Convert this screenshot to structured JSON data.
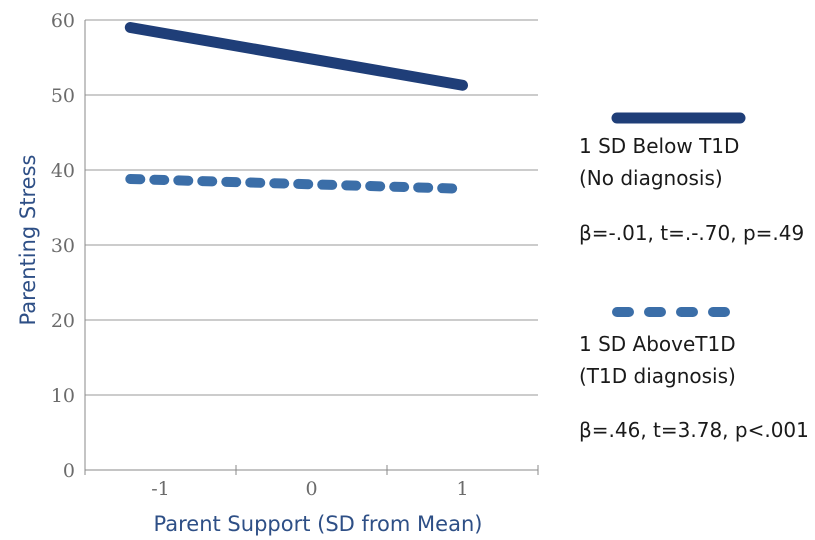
{
  "chart_data": {
    "type": "line",
    "xlabel": "Parent Support (SD from Mean)",
    "ylabel": "Parenting Stress",
    "xlim": [
      -1.5,
      1.5
    ],
    "ylim": [
      0,
      60
    ],
    "x_ticks": [
      -1,
      0,
      1
    ],
    "x_tick_labels": [
      "-1",
      "0",
      "1"
    ],
    "x_minor_ticks": [
      -1.5,
      -0.5,
      0.5,
      1.5
    ],
    "y_ticks": [
      0,
      10,
      20,
      30,
      40,
      50,
      60
    ],
    "grid": "horizontal",
    "legend_position": "right",
    "series": [
      {
        "name": [
          "1 SD Below T1D",
          "(No diagnosis)"
        ],
        "stat": "β=-.01, t=.-.70, p=.49",
        "style": "solid",
        "color": "#1f3e78",
        "x": [
          -1.2,
          1
        ],
        "y": [
          59,
          51.3
        ]
      },
      {
        "name": [
          "1 SD AboveT1D",
          "(T1D diagnosis)"
        ],
        "stat": "β=.46, t=3.78, p<.001",
        "style": "dashed",
        "color": "#3b6ea8",
        "x": [
          -1.2,
          1
        ],
        "y": [
          38.8,
          37.5
        ]
      }
    ]
  }
}
